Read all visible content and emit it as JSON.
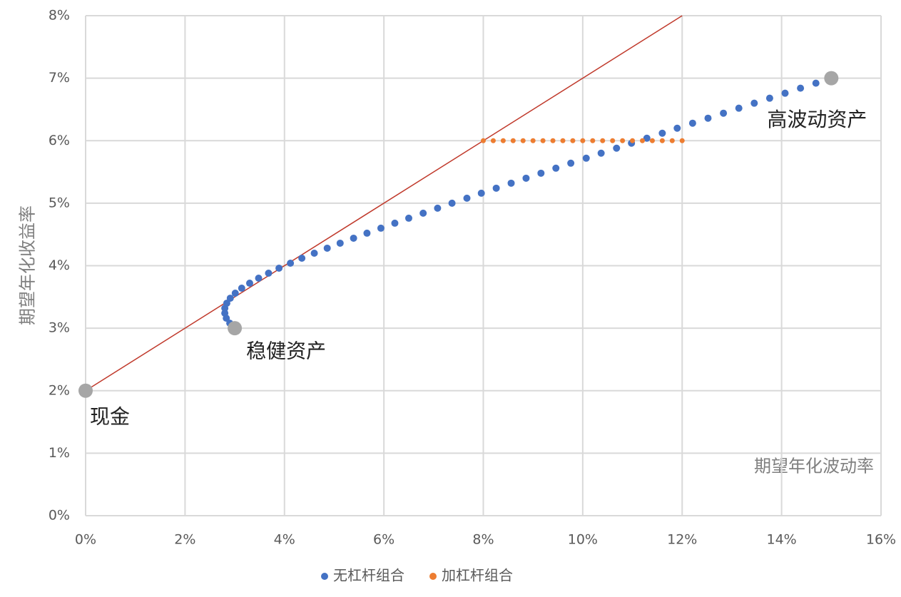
{
  "chart_data": {
    "type": "scatter",
    "y_axis_title": "期望年化收益率",
    "x_axis_title": "期望年化波动率",
    "xlim": [
      0,
      16
    ],
    "ylim": [
      0,
      8
    ],
    "xticks": [
      {
        "value": 0,
        "label": "0%"
      },
      {
        "value": 2,
        "label": "2%"
      },
      {
        "value": 4,
        "label": "4%"
      },
      {
        "value": 6,
        "label": "6%"
      },
      {
        "value": 8,
        "label": "8%"
      },
      {
        "value": 10,
        "label": "10%"
      },
      {
        "value": 12,
        "label": "12%"
      },
      {
        "value": 14,
        "label": "14%"
      },
      {
        "value": 16,
        "label": "16%"
      }
    ],
    "yticks": [
      {
        "value": 0,
        "label": "0%"
      },
      {
        "value": 1,
        "label": "1%"
      },
      {
        "value": 2,
        "label": "2%"
      },
      {
        "value": 3,
        "label": "3%"
      },
      {
        "value": 4,
        "label": "4%"
      },
      {
        "value": 5,
        "label": "5%"
      },
      {
        "value": 6,
        "label": "6%"
      },
      {
        "value": 7,
        "label": "7%"
      },
      {
        "value": 8,
        "label": "8%"
      }
    ],
    "grid": true,
    "legend": "bottom",
    "series": [
      {
        "name": "无杠杆组合",
        "color": "#4472c4",
        "x": [
          3.0,
          2.9,
          2.83,
          2.8,
          2.8,
          2.84,
          2.91,
          3.01,
          3.14,
          3.3,
          3.48,
          3.68,
          3.89,
          4.12,
          4.35,
          4.6,
          4.86,
          5.12,
          5.39,
          5.66,
          5.94,
          6.22,
          6.5,
          6.79,
          7.08,
          7.37,
          7.67,
          7.96,
          8.26,
          8.56,
          8.86,
          9.16,
          9.46,
          9.76,
          10.07,
          10.37,
          10.68,
          10.98,
          11.29,
          11.6,
          11.9,
          12.21,
          12.52,
          12.83,
          13.14,
          13.45,
          13.76,
          14.07,
          14.38,
          14.69,
          15.0
        ],
        "values": [
          3.0,
          3.08,
          3.16,
          3.24,
          3.32,
          3.4,
          3.48,
          3.56,
          3.64,
          3.72,
          3.8,
          3.88,
          3.96,
          4.04,
          4.12,
          4.2,
          4.28,
          4.36,
          4.44,
          4.52,
          4.6,
          4.68,
          4.76,
          4.84,
          4.92,
          5.0,
          5.08,
          5.16,
          5.24,
          5.32,
          5.4,
          5.48,
          5.56,
          5.64,
          5.72,
          5.8,
          5.88,
          5.96,
          6.04,
          6.12,
          6.2,
          6.28,
          6.36,
          6.44,
          6.52,
          6.6,
          6.68,
          6.76,
          6.84,
          6.92,
          7.0
        ]
      },
      {
        "name": "加杠杆组合",
        "color": "#ed7d31",
        "x": [
          8.0,
          8.2,
          8.4,
          8.6,
          8.8,
          9.0,
          9.2,
          9.4,
          9.6,
          9.8,
          10.0,
          10.2,
          10.4,
          10.6,
          10.8,
          11.0,
          11.2,
          11.4,
          11.6,
          11.8,
          12.0
        ],
        "values": [
          6,
          6,
          6,
          6,
          6,
          6,
          6,
          6,
          6,
          6,
          6,
          6,
          6,
          6,
          6,
          6,
          6,
          6,
          6,
          6,
          6
        ]
      }
    ],
    "reference_line": {
      "color": "#c0392b",
      "x": [
        0,
        12
      ],
      "values": [
        2,
        8
      ]
    },
    "anchor_points": {
      "color": "#a6a6a6",
      "x": [
        0,
        3,
        15
      ],
      "values": [
        2,
        3,
        7
      ],
      "labels": [
        "现金",
        "稳健资产",
        "高波动资产"
      ]
    }
  }
}
